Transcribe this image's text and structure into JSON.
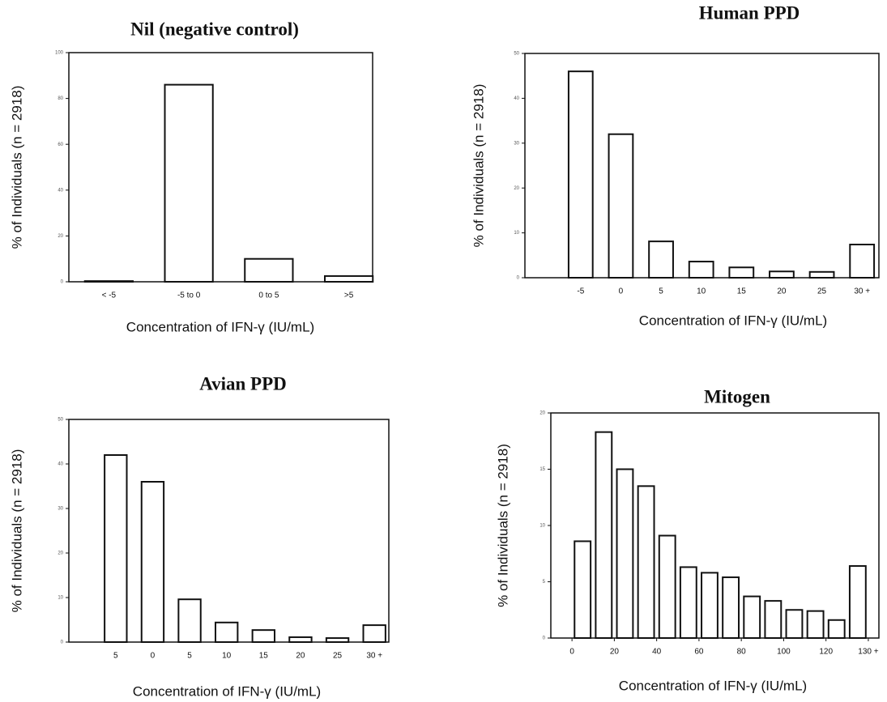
{
  "chart_data": [
    {
      "type": "bar",
      "title": "Nil (negative control)",
      "y_label": "% of Individuals (n = 2918)",
      "x_label": "Concentration of IFN-γ (IU/mL)",
      "categories": [
        "< -5",
        "-5 to 0",
        "0 to 5",
        ">5"
      ],
      "values": [
        0.3,
        86,
        10,
        2.5
      ],
      "color": "#ffffff",
      "ylim": [
        0,
        100
      ],
      "yticks": [
        0,
        20,
        40,
        60,
        80,
        100
      ]
    },
    {
      "type": "bar",
      "title": "Human PPD",
      "y_label": "% of Individuals (n = 2918)",
      "x_label": "Concentration of IFN-γ (IU/mL)",
      "categories": [
        "-5",
        "0",
        "5",
        "10",
        "15",
        "20",
        "25",
        "30 +"
      ],
      "values": [
        46,
        32,
        8.1,
        3.6,
        2.3,
        1.4,
        1.3,
        7.4
      ],
      "color": "#ffffff",
      "ylim": [
        0,
        50
      ],
      "yticks": [
        0,
        10,
        20,
        30,
        40,
        50
      ]
    },
    {
      "type": "bar",
      "title": "Avian PPD",
      "y_label": "% of Individuals (n = 2918)",
      "x_label": "Concentration of IFN-γ (IU/mL)",
      "categories": [
        "5",
        "0",
        "5",
        "10",
        "15",
        "20",
        "25",
        "30 +"
      ],
      "values": [
        42,
        36,
        9.6,
        4.4,
        2.7,
        1.1,
        0.9,
        3.8
      ],
      "color": "#ffffff",
      "ylim": [
        0,
        50
      ],
      "yticks": [
        0,
        10,
        20,
        30,
        40,
        50
      ]
    },
    {
      "type": "histogram",
      "title": "Mitogen",
      "y_label": "% of Individuals (n = 2918)",
      "x_label": "Concentration of IFN-γ (IU/mL)",
      "bins": [
        0,
        10,
        20,
        30,
        40,
        50,
        60,
        70,
        80,
        90,
        100,
        110,
        120,
        130,
        140
      ],
      "values": [
        8.6,
        18.3,
        15.0,
        13.5,
        9.1,
        6.3,
        5.8,
        5.4,
        3.7,
        3.3,
        2.5,
        2.4,
        1.6,
        6.4
      ],
      "color": "#ffffff",
      "xlim": [
        -10,
        145
      ],
      "xticks": [
        0,
        20,
        40,
        60,
        80,
        100,
        120,
        {
          "value": 140,
          "label": "130 +"
        }
      ],
      "ylim": [
        0,
        20
      ],
      "yticks": [
        0,
        5,
        10,
        15,
        20
      ]
    }
  ]
}
